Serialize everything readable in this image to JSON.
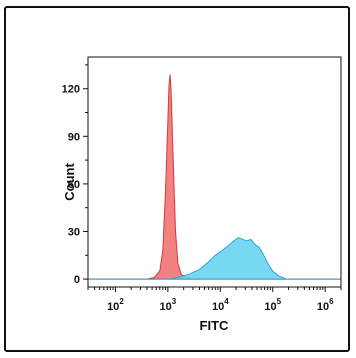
{
  "chart_data": {
    "type": "area",
    "title": "",
    "xlabel": "FITC",
    "ylabel": "Count",
    "x_scale": "log",
    "xlim": [
      30,
      2000000
    ],
    "ylim": [
      -5,
      140
    ],
    "x_ticks": [
      {
        "value": 100,
        "base": "10",
        "exp": "2"
      },
      {
        "value": 1000,
        "base": "10",
        "exp": "3"
      },
      {
        "value": 10000,
        "base": "10",
        "exp": "4"
      },
      {
        "value": 100000,
        "base": "10",
        "exp": "5"
      },
      {
        "value": 1000000,
        "base": "10",
        "exp": "6"
      }
    ],
    "y_ticks": [
      0,
      30,
      60,
      90,
      120
    ],
    "grid": false,
    "legend": "none",
    "series": [
      {
        "color": "#f26b6b",
        "stroke": "#d23b3b",
        "x": [
          30,
          400,
          550,
          700,
          800,
          900,
          1000,
          1050,
          1100,
          1150,
          1200,
          1300,
          1400,
          1550,
          1800,
          2200,
          3000,
          2000000
        ],
        "y": [
          0,
          0,
          1,
          5,
          18,
          55,
          100,
          122,
          129,
          120,
          100,
          62,
          30,
          10,
          3,
          1,
          0,
          0
        ]
      },
      {
        "color": "#5fd1f0",
        "stroke": "#2ba6cf",
        "x": [
          30,
          1000,
          1500,
          2500,
          4000,
          6000,
          8000,
          10000,
          14000,
          18000,
          22000,
          27000,
          32000,
          38000,
          45000,
          55000,
          65000,
          80000,
          100000,
          130000,
          180000,
          2000000
        ],
        "y": [
          0,
          0,
          1,
          3,
          6,
          11,
          15,
          17,
          21,
          24,
          26,
          25,
          24,
          25,
          22,
          20,
          16,
          10,
          5,
          2,
          0,
          0
        ]
      }
    ]
  }
}
